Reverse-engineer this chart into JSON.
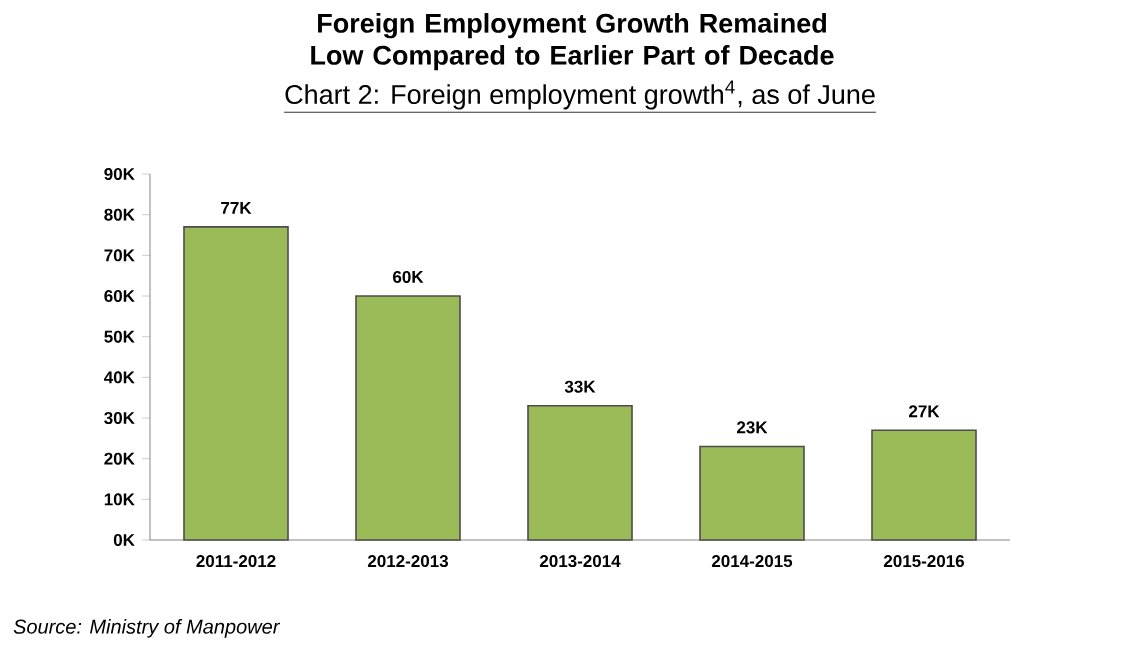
{
  "chart_data": {
    "type": "bar",
    "title": "Foreign Employment Growth Remained Low Compared to Earlier Part of Decade",
    "subtitle": "Chart 2:  Foreign employment growth$^{4}$, as of June",
    "categories": [
      "2011-2012",
      "2012-2013",
      "2013-2014",
      "2014-2015",
      "2015-2016"
    ],
    "values": [
      77000,
      60000,
      33000,
      23000,
      27000
    ],
    "value_labels": [
      "77K",
      "60K",
      "33K",
      "23K",
      "27K"
    ],
    "color": "#9bbb59",
    "ylim": [
      0,
      90000
    ],
    "yticks": [
      {
        "value": 0,
        "label": "0K"
      },
      {
        "value": 10000,
        "label": "10K"
      },
      {
        "value": 20000,
        "label": "20K"
      },
      {
        "value": 30000,
        "label": "30K"
      },
      {
        "value": 40000,
        "label": "40K"
      },
      {
        "value": 50000,
        "label": "50K"
      },
      {
        "value": 60000,
        "label": "60K"
      },
      {
        "value": 70000,
        "label": "70K"
      },
      {
        "value": 80000,
        "label": "80K"
      },
      {
        "value": 90000,
        "label": "90K"
      }
    ],
    "annotations": [
      "Source: Ministry of Manpower"
    ]
  }
}
